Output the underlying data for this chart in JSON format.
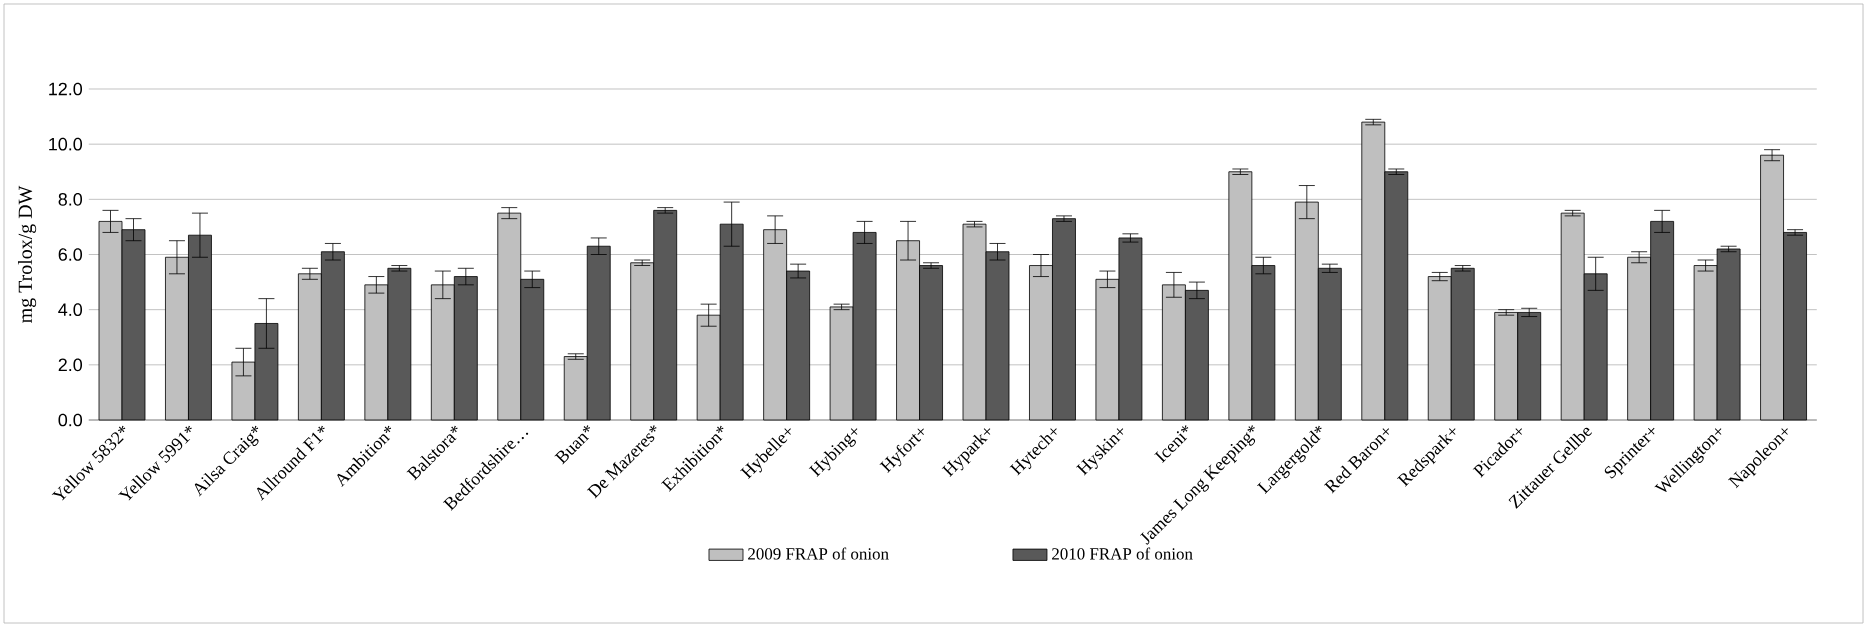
{
  "chart_data": {
    "type": "bar",
    "ylabel": "mg Trolox/g DW",
    "categories": [
      "Yellow 5832*",
      "Yellow 5991*",
      "Ailsa Craig*",
      "Allround F1*",
      "Ambition*",
      "Balstora*",
      "Bedfordshire…",
      "Buan*",
      "De Mazeres*",
      "Exhibition*",
      "Hybelle+",
      "Hybing+",
      "Hyfort+",
      "Hypark+",
      "Hytech+",
      "Hyskin+",
      "Iceni*",
      "James Long Keeping*",
      "Largergold*",
      "Red Baron+",
      "Redspark+",
      "Picador+",
      "Zittauer Gellbe",
      "Sprinter+",
      "Wellington+",
      "Napoleon+"
    ],
    "series": [
      {
        "name": "2009 FRAP of onion",
        "color": "#bfbfbf",
        "values": [
          7.2,
          5.9,
          2.1,
          5.3,
          4.9,
          4.9,
          7.5,
          2.3,
          5.7,
          3.8,
          6.9,
          4.1,
          6.5,
          7.1,
          5.6,
          5.1,
          4.9,
          9.0,
          7.9,
          10.8,
          5.2,
          3.9,
          7.5,
          5.9,
          5.6,
          9.6
        ],
        "errors": [
          0.4,
          0.6,
          0.5,
          0.2,
          0.3,
          0.5,
          0.2,
          0.1,
          0.1,
          0.4,
          0.5,
          0.1,
          0.7,
          0.1,
          0.4,
          0.3,
          0.45,
          0.1,
          0.6,
          0.1,
          0.15,
          0.1,
          0.1,
          0.2,
          0.2,
          0.2
        ]
      },
      {
        "name": "2010 FRAP of onion",
        "color": "#595959",
        "values": [
          6.9,
          6.7,
          3.5,
          6.1,
          5.5,
          5.2,
          5.1,
          6.3,
          7.6,
          7.1,
          5.4,
          6.8,
          5.6,
          6.1,
          7.3,
          6.6,
          4.7,
          5.6,
          5.5,
          9.0,
          5.5,
          3.9,
          5.3,
          7.2,
          6.2,
          6.8
        ],
        "errors": [
          0.4,
          0.8,
          0.9,
          0.3,
          0.1,
          0.3,
          0.3,
          0.3,
          0.1,
          0.8,
          0.25,
          0.4,
          0.1,
          0.3,
          0.1,
          0.15,
          0.3,
          0.3,
          0.15,
          0.1,
          0.1,
          0.15,
          0.6,
          0.4,
          0.1,
          0.1
        ]
      }
    ],
    "ylim": [
      0,
      12
    ],
    "yticks": [
      {
        "value": 0,
        "label": "0.0"
      },
      {
        "value": 2,
        "label": "2.0"
      },
      {
        "value": 4,
        "label": "4.0"
      },
      {
        "value": 6,
        "label": "6.0"
      },
      {
        "value": 8,
        "label": "8.0"
      },
      {
        "value": 10,
        "label": "10.0"
      },
      {
        "value": 12,
        "label": "12.0"
      }
    ],
    "grid": "y",
    "legend": "bottom"
  }
}
